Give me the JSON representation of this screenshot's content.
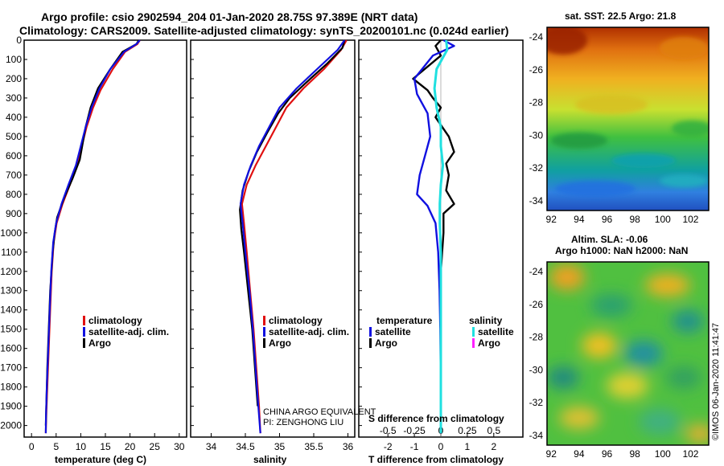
{
  "header": {
    "line1": "Argo profile: csio 2902594_204 01-Jan-2020 28.75S 97.389E (NRT data)",
    "line2": "Climatology: CARS2009. Satellite-adjusted climatology: synTS_20200101.nc (0.024d earlier)"
  },
  "sst_panel": {
    "title": "sat. SST: 22.5 Argo: 21.8"
  },
  "sla_panel": {
    "title1": "Altim. SLA: -0.06",
    "title2": "Argo h1000: NaN h2000: NaN"
  },
  "footer": {
    "china": "CHINA ARGO EQUIVALENT",
    "pi": "PI: ZENGHONG LIU",
    "stamp": "©IMOS 06-Jan-2020 11:41:47"
  },
  "colors": {
    "climatology": "#e01010",
    "satellite": "#1010e0",
    "argo": "#000000",
    "sal_satellite": "#20e0e0",
    "sal_argo": "#ff20ff"
  },
  "chart_data": [
    {
      "type": "line",
      "title": "",
      "xlabel": "temperature (deg C)",
      "ylabel": "",
      "xlim": [
        -1.5,
        31.5
      ],
      "ylim": [
        2060,
        0
      ],
      "xticks": [
        0,
        5,
        10,
        15,
        20,
        25,
        30
      ],
      "yticks": [
        0,
        100,
        200,
        300,
        400,
        500,
        600,
        700,
        800,
        900,
        1000,
        1100,
        1200,
        1300,
        1400,
        1500,
        1600,
        1700,
        1800,
        1900,
        2000
      ],
      "legend": {
        "position": "center-right",
        "entries": [
          "climatology",
          "satellite-adj. clim.",
          "Argo"
        ]
      },
      "series": [
        {
          "name": "climatology",
          "points": [
            [
              22,
              0
            ],
            [
              21.5,
              20
            ],
            [
              19,
              60
            ],
            [
              16.5,
              150
            ],
            [
              14,
              260
            ],
            [
              12.5,
              350
            ],
            [
              11.2,
              450
            ],
            [
              10.2,
              550
            ],
            [
              9.2,
              650
            ],
            [
              7.8,
              750
            ],
            [
              6.3,
              850
            ],
            [
              5.1,
              950
            ],
            [
              4.5,
              1050
            ],
            [
              4.1,
              1200
            ],
            [
              3.8,
              1400
            ],
            [
              3.5,
              1600
            ],
            [
              3.2,
              1800
            ],
            [
              3,
              1950
            ],
            [
              2.9,
              2040
            ]
          ]
        },
        {
          "name": "satellite-adj. clim.",
          "points": [
            [
              22,
              0
            ],
            [
              21.3,
              20
            ],
            [
              18.8,
              60
            ],
            [
              16,
              150
            ],
            [
              13.8,
              250
            ],
            [
              12.2,
              350
            ],
            [
              11,
              450
            ],
            [
              10,
              550
            ],
            [
              9,
              650
            ],
            [
              7.5,
              750
            ],
            [
              6.1,
              850
            ],
            [
              5,
              950
            ],
            [
              4.4,
              1050
            ],
            [
              4,
              1200
            ],
            [
              3.7,
              1400
            ],
            [
              3.4,
              1600
            ],
            [
              3.1,
              1800
            ],
            [
              2.95,
              1950
            ],
            [
              2.9,
              2040
            ]
          ]
        },
        {
          "name": "Argo",
          "points": [
            [
              21.8,
              0
            ],
            [
              21.3,
              20
            ],
            [
              18.5,
              60
            ],
            [
              16,
              150
            ],
            [
              13.5,
              250
            ],
            [
              12,
              350
            ],
            [
              11,
              450
            ],
            [
              10.3,
              550
            ],
            [
              9.8,
              620
            ],
            [
              8.3,
              720
            ],
            [
              6.6,
              820
            ],
            [
              5.2,
              920
            ],
            [
              4.7,
              1000
            ],
            [
              4.3,
              1100
            ],
            [
              3.8,
              1300
            ],
            [
              3.5,
              1500
            ],
            [
              3.2,
              1700
            ],
            [
              3,
              1900
            ],
            [
              2.9,
              2000
            ]
          ]
        }
      ]
    },
    {
      "type": "line",
      "title": "",
      "xlabel": "salinity",
      "ylabel": "",
      "xlim": [
        33.7,
        36.1
      ],
      "ylim": [
        2060,
        0
      ],
      "xticks": [
        34,
        34.5,
        35,
        35.5,
        36
      ],
      "yticks": [
        0,
        100,
        200,
        300,
        400,
        500,
        600,
        700,
        800,
        900,
        1000,
        1100,
        1200,
        1300,
        1400,
        1500,
        1600,
        1700,
        1800,
        1900,
        2000
      ],
      "legend": {
        "position": "center-right",
        "entries": [
          "climatology",
          "satellite-adj. clim.",
          "Argo"
        ]
      },
      "series": [
        {
          "name": "climatology",
          "points": [
            [
              35.98,
              0
            ],
            [
              35.9,
              50
            ],
            [
              35.65,
              150
            ],
            [
              35.35,
              250
            ],
            [
              35.1,
              350
            ],
            [
              34.95,
              450
            ],
            [
              34.8,
              550
            ],
            [
              34.65,
              650
            ],
            [
              34.52,
              750
            ],
            [
              34.45,
              850
            ],
            [
              34.48,
              950
            ],
            [
              34.52,
              1100
            ],
            [
              34.57,
              1300
            ],
            [
              34.62,
              1500
            ],
            [
              34.66,
              1700
            ],
            [
              34.7,
              1900
            ],
            [
              34.72,
              2040
            ]
          ]
        },
        {
          "name": "satellite-adj. clim.",
          "points": [
            [
              35.95,
              0
            ],
            [
              35.85,
              50
            ],
            [
              35.55,
              150
            ],
            [
              35.25,
              250
            ],
            [
              35,
              350
            ],
            [
              34.85,
              450
            ],
            [
              34.7,
              550
            ],
            [
              34.58,
              650
            ],
            [
              34.48,
              750
            ],
            [
              34.43,
              850
            ],
            [
              34.46,
              950
            ],
            [
              34.5,
              1100
            ],
            [
              34.56,
              1300
            ],
            [
              34.61,
              1500
            ],
            [
              34.65,
              1700
            ],
            [
              34.69,
              1900
            ],
            [
              34.72,
              2040
            ]
          ]
        },
        {
          "name": "Argo",
          "points": [
            [
              35.95,
              0
            ],
            [
              35.92,
              40
            ],
            [
              35.7,
              120
            ],
            [
              35.45,
              200
            ],
            [
              35.15,
              300
            ],
            [
              34.98,
              380
            ],
            [
              34.82,
              480
            ],
            [
              34.67,
              580
            ],
            [
              34.55,
              680
            ],
            [
              34.46,
              780
            ],
            [
              34.42,
              880
            ],
            [
              34.44,
              980
            ],
            [
              34.48,
              1100
            ],
            [
              34.54,
              1300
            ],
            [
              34.6,
              1500
            ],
            [
              34.64,
              1700
            ],
            [
              34.68,
              1900
            ]
          ]
        }
      ]
    },
    {
      "type": "line",
      "title": "",
      "xlabel": "T difference from climatology",
      "xlabel_top": "S difference from climatology",
      "ylabel": "",
      "xlim": [
        -3.1,
        3.1
      ],
      "ylim": [
        2060,
        0
      ],
      "xticks": [
        -2,
        -1,
        0,
        1,
        2
      ],
      "xticks_top": [
        -0.5,
        -0.25,
        0,
        0.25,
        0.5
      ],
      "legend": {
        "position": "center",
        "temperature_title": "temperature",
        "salinity_title": "salinity",
        "entries": [
          "satellite",
          "Argo",
          "satellite",
          "Argo"
        ]
      },
      "series": [
        {
          "name": "temperature satellite",
          "points": [
            [
              0.1,
              0
            ],
            [
              0.5,
              30
            ],
            [
              -0.3,
              80
            ],
            [
              -1.0,
              200
            ],
            [
              -0.9,
              280
            ],
            [
              -0.5,
              380
            ],
            [
              -0.4,
              500
            ],
            [
              -0.6,
              600
            ],
            [
              -0.8,
              700
            ],
            [
              -0.9,
              800
            ],
            [
              -0.5,
              860
            ],
            [
              -0.2,
              950
            ],
            [
              -0.1,
              1100
            ],
            [
              -0.05,
              1300
            ],
            [
              -0.02,
              1500
            ],
            [
              0,
              1800
            ],
            [
              0,
              2040
            ]
          ]
        },
        {
          "name": "temperature Argo",
          "points": [
            [
              0,
              0
            ],
            [
              -0.2,
              30
            ],
            [
              0,
              80
            ],
            [
              -1.05,
              200
            ],
            [
              -0.5,
              260
            ],
            [
              -0.3,
              300
            ],
            [
              0,
              350
            ],
            [
              -0.2,
              400
            ],
            [
              0.3,
              500
            ],
            [
              0.5,
              580
            ],
            [
              0.2,
              640
            ],
            [
              0.3,
              700
            ],
            [
              0.2,
              780
            ],
            [
              0.5,
              850
            ],
            [
              0.1,
              900
            ],
            [
              0.1,
              1000
            ],
            [
              0,
              1200
            ],
            [
              0,
              1500
            ],
            [
              0,
              1800
            ],
            [
              0,
              2040
            ]
          ]
        },
        {
          "name": "salinity satellite",
          "points": [
            [
              0.05,
              0
            ],
            [
              0.06,
              50
            ],
            [
              -0.04,
              150
            ],
            [
              -0.06,
              250
            ],
            [
              -0.04,
              350
            ],
            [
              0,
              450
            ],
            [
              0,
              550
            ],
            [
              0.02,
              650
            ],
            [
              0,
              750
            ],
            [
              -0.01,
              850
            ],
            [
              -0.01,
              950
            ],
            [
              0,
              1100
            ],
            [
              0,
              1500
            ],
            [
              0,
              2040
            ]
          ]
        }
      ]
    },
    {
      "type": "heatmap",
      "title": "sat. SST: 22.5 Argo: 21.8",
      "xticks": [
        92,
        94,
        96,
        98,
        100,
        102
      ],
      "yticks": [
        -24,
        -26,
        -28,
        -30,
        -32,
        -34
      ],
      "xlim": [
        91.7,
        103.3
      ],
      "ylim": [
        -34.6,
        -23.4
      ]
    },
    {
      "type": "heatmap",
      "title": "Altim. SLA: -0.06 / Argo h1000: NaN h2000: NaN",
      "xticks": [
        92,
        94,
        96,
        98,
        100,
        102
      ],
      "yticks": [
        -24,
        -26,
        -28,
        -30,
        -32,
        -34
      ],
      "xlim": [
        91.7,
        103.3
      ],
      "ylim": [
        -34.6,
        -23.4
      ]
    }
  ]
}
